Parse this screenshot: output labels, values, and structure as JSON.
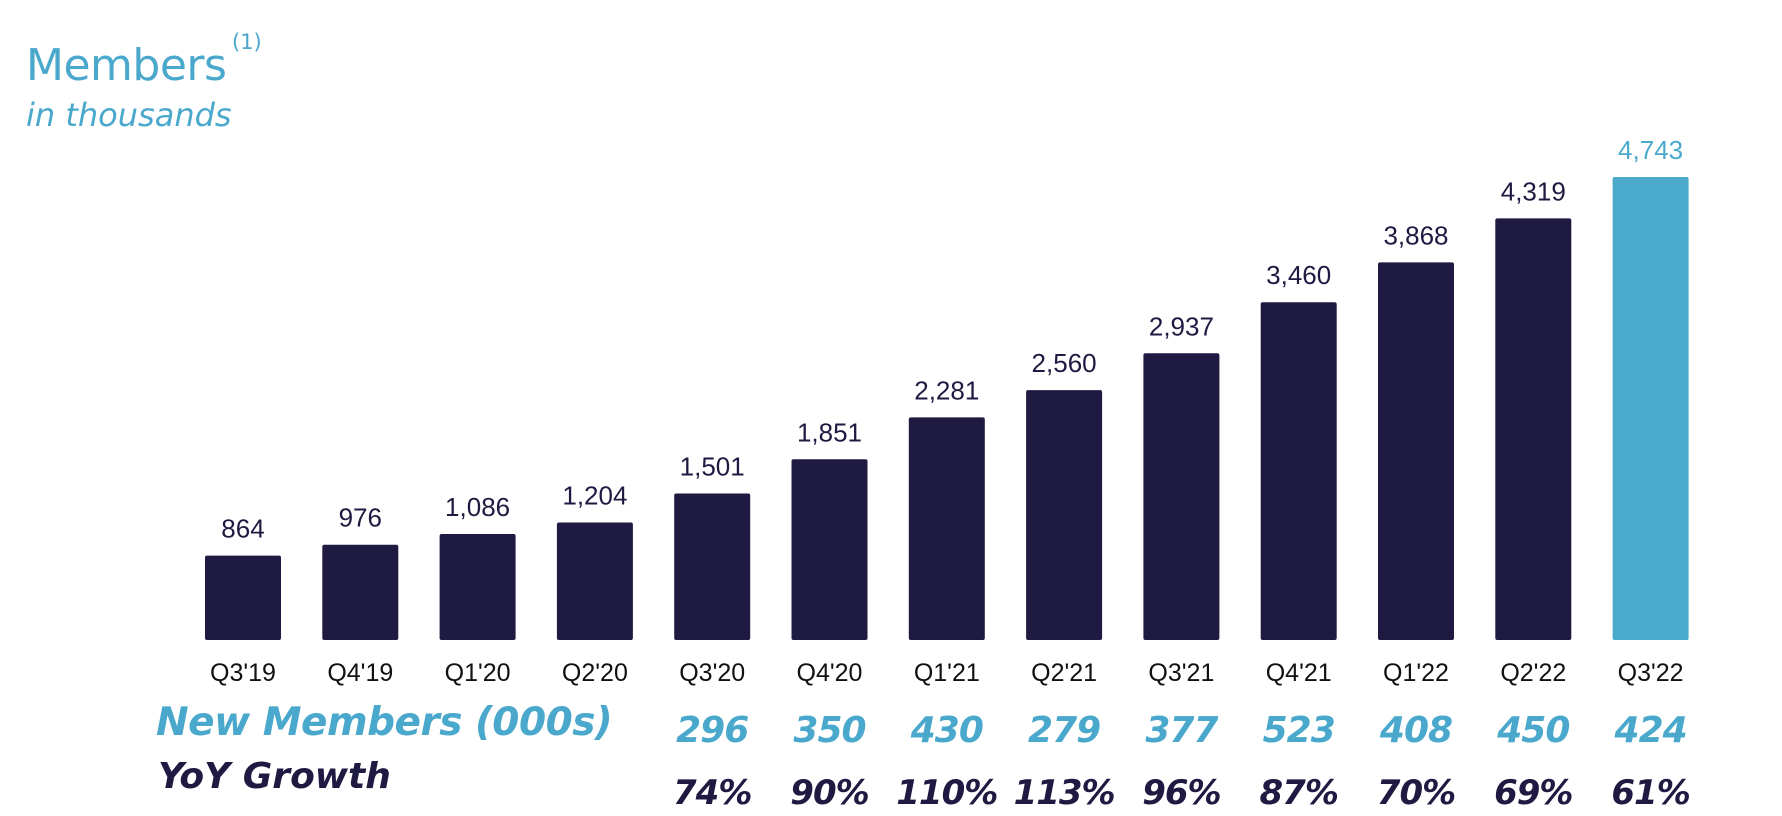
{
  "colors": {
    "bar": "#1f1a42",
    "highlight_bar": "#4ba9cb",
    "accent": "#4aa8cc",
    "text_dark": "#1e1a41"
  },
  "chart_data": {
    "type": "bar",
    "title": "Members",
    "title_superscript": "(1)",
    "subtitle": "in thousands",
    "categories": [
      "Q3'19",
      "Q4'19",
      "Q1'20",
      "Q2'20",
      "Q3'20",
      "Q4'20",
      "Q1'21",
      "Q2'21",
      "Q3'21",
      "Q4'21",
      "Q1'22",
      "Q2'22",
      "Q3'22"
    ],
    "values": [
      864,
      976,
      1086,
      1204,
      1501,
      1851,
      2281,
      2560,
      2937,
      3460,
      3868,
      4319,
      4743
    ],
    "value_labels": [
      "864",
      "976",
      "1,086",
      "1,204",
      "1,501",
      "1,851",
      "2,281",
      "2,560",
      "2,937",
      "3,460",
      "3,868",
      "4,319",
      "4,743"
    ],
    "highlight_index": 12,
    "grid": false,
    "legend": "none"
  },
  "table_rows": {
    "new_members": {
      "label": "New Members (000s)",
      "values": [
        "296",
        "350",
        "430",
        "279",
        "377",
        "523",
        "408",
        "450",
        "424"
      ]
    },
    "yoy_growth": {
      "label": "YoY Growth",
      "values": [
        "74%",
        "90%",
        "110%",
        "113%",
        "96%",
        "87%",
        "70%",
        "69%",
        "61%"
      ]
    }
  }
}
